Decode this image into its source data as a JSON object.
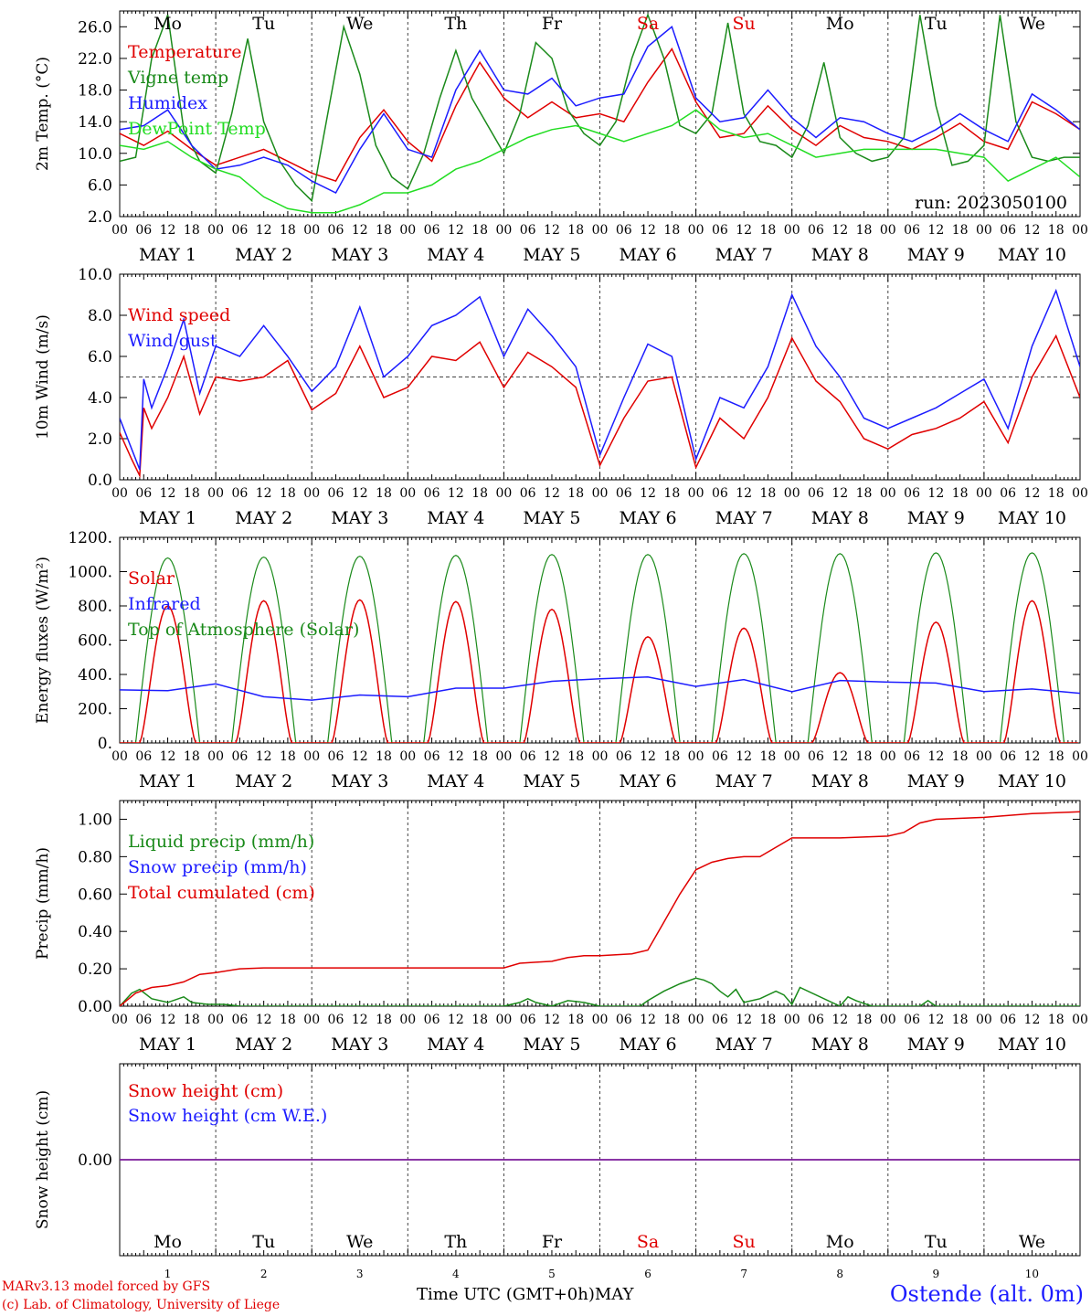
{
  "days": {
    "short": [
      "Mo",
      "Tu",
      "We",
      "Th",
      "Fr",
      "Sa",
      "Su",
      "Mo",
      "Tu",
      "We"
    ],
    "colors": [
      "#000000",
      "#000000",
      "#000000",
      "#000000",
      "#000000",
      "#e00000",
      "#e00000",
      "#000000",
      "#000000",
      "#000000"
    ],
    "numbers": [
      "1",
      "2",
      "3",
      "4",
      "5",
      "6",
      "7",
      "8",
      "9",
      "10"
    ],
    "date_labels": [
      "MAY  1",
      "MAY  2",
      "MAY  3",
      "MAY  4",
      "MAY  5",
      "MAY  6",
      "MAY  7",
      "MAY  8",
      "MAY  9",
      "MAY 10"
    ],
    "hour_ticks": [
      "00",
      "06",
      "12",
      "18"
    ],
    "final_tick": "00"
  },
  "colors": {
    "red": "#e00000",
    "blue": "#1c1cff",
    "green": "#1a8a1a",
    "lightgreen": "#22dd22",
    "purple": "#7a1a9a",
    "grid": "#444444"
  },
  "run_label": "run: 2023050100",
  "footer": {
    "credit_line1": "MARv3.13 model forced by GFS",
    "credit_line2": "(c) Lab. of Climatology, University of Liege",
    "xlabel": "Time UTC (GMT+0h)",
    "month": "MAY",
    "station": "Ostende (alt. 0m)"
  },
  "chart_data": [
    {
      "type": "line",
      "ylabel": "2m Temp. (°C)",
      "ylim": [
        2,
        28
      ],
      "yticks": [
        "2.0",
        "6.0",
        "10.0",
        "14.0",
        "18.0",
        "22.0",
        "26.0"
      ],
      "ytick_values": [
        2,
        6,
        10,
        14,
        18,
        22,
        26
      ],
      "ref_line": null,
      "x_unit": "hours since 2023-05-01 00 UTC",
      "series": [
        {
          "name": "Temperature",
          "color_key": "red",
          "x": [
            0,
            6,
            12,
            18,
            24,
            30,
            36,
            42,
            48,
            54,
            60,
            66,
            72,
            78,
            84,
            90,
            96,
            102,
            108,
            114,
            120,
            126,
            132,
            138,
            144,
            150,
            156,
            162,
            168,
            174,
            180,
            186,
            192,
            198,
            204,
            210,
            216,
            222,
            228,
            234,
            240
          ],
          "y": [
            12.5,
            11.0,
            12.8,
            10.5,
            8.5,
            9.5,
            10.5,
            9.0,
            7.5,
            6.5,
            12.0,
            15.5,
            11.5,
            9.0,
            16.0,
            21.5,
            17.0,
            14.5,
            16.5,
            14.5,
            15.0,
            14.0,
            19.0,
            23.2,
            16.5,
            12.0,
            12.5,
            16.0,
            13.0,
            11.0,
            13.5,
            12.0,
            11.5,
            10.5,
            12.0,
            13.8,
            11.5,
            10.5,
            16.5,
            15.0,
            13.0
          ]
        },
        {
          "name": "Vigne temp",
          "color_key": "green",
          "x": [
            0,
            4,
            8,
            12,
            16,
            20,
            24,
            28,
            32,
            36,
            40,
            44,
            48,
            52,
            56,
            60,
            64,
            68,
            72,
            76,
            80,
            84,
            88,
            92,
            96,
            100,
            104,
            108,
            112,
            116,
            120,
            124,
            128,
            132,
            136,
            140,
            144,
            148,
            152,
            156,
            160,
            164,
            168,
            172,
            176,
            180,
            184,
            188,
            192,
            196,
            200,
            204,
            208,
            212,
            216,
            220,
            224,
            228,
            232,
            236,
            240
          ],
          "y": [
            9.0,
            9.5,
            22.0,
            27.5,
            13.0,
            9.0,
            7.5,
            15.0,
            24.5,
            14.0,
            9.0,
            6.0,
            4.0,
            15.0,
            26.0,
            20.0,
            11.0,
            7.0,
            5.5,
            10.0,
            17.0,
            23.0,
            17.0,
            13.5,
            10.0,
            15.0,
            24.0,
            22.0,
            15.5,
            12.5,
            11.0,
            14.0,
            22.0,
            27.5,
            22.0,
            13.5,
            12.5,
            15.0,
            26.5,
            15.0,
            11.5,
            11.0,
            9.5,
            13.5,
            21.5,
            12.0,
            10.0,
            9.0,
            9.5,
            12.0,
            27.5,
            16.0,
            8.5,
            9.0,
            11.0,
            27.5,
            14.0,
            9.5,
            9.0,
            9.5,
            9.5
          ]
        },
        {
          "name": "Humidex",
          "color_key": "blue",
          "x": [
            0,
            6,
            12,
            18,
            24,
            30,
            36,
            42,
            48,
            54,
            60,
            66,
            72,
            78,
            84,
            90,
            96,
            102,
            108,
            114,
            120,
            126,
            132,
            138,
            144,
            150,
            156,
            162,
            168,
            174,
            180,
            186,
            192,
            198,
            204,
            210,
            216,
            222,
            228,
            234,
            240
          ],
          "y": [
            13.0,
            13.5,
            15.5,
            11.0,
            8.0,
            8.5,
            9.5,
            8.5,
            6.5,
            5.0,
            10.5,
            15.0,
            10.5,
            9.5,
            18.0,
            23.0,
            18.0,
            17.5,
            19.5,
            16.0,
            17.0,
            17.5,
            23.5,
            26.0,
            17.0,
            14.0,
            14.5,
            18.0,
            14.5,
            12.0,
            14.5,
            14.0,
            12.5,
            11.5,
            13.0,
            15.0,
            13.0,
            11.5,
            17.5,
            15.5,
            13.0
          ]
        },
        {
          "name": "DewPoint Temp",
          "color_key": "lightgreen",
          "x": [
            0,
            6,
            12,
            18,
            24,
            30,
            36,
            42,
            48,
            54,
            60,
            66,
            72,
            78,
            84,
            90,
            96,
            102,
            108,
            114,
            120,
            126,
            132,
            138,
            144,
            150,
            156,
            162,
            168,
            174,
            180,
            186,
            192,
            198,
            204,
            210,
            216,
            222,
            228,
            234,
            240
          ],
          "y": [
            11.0,
            10.5,
            11.5,
            9.5,
            8.0,
            7.0,
            4.5,
            3.0,
            2.5,
            2.5,
            3.5,
            5.0,
            5.0,
            6.0,
            8.0,
            9.0,
            10.5,
            12.0,
            13.0,
            13.5,
            12.5,
            11.5,
            12.5,
            13.5,
            15.5,
            13.0,
            12.0,
            12.5,
            11.0,
            9.5,
            10.0,
            10.5,
            10.5,
            10.5,
            10.5,
            10.0,
            9.5,
            6.5,
            8.0,
            9.5,
            7.0
          ]
        }
      ]
    },
    {
      "type": "line",
      "ylabel": "10m Wind (m/s)",
      "ylim": [
        0,
        10
      ],
      "yticks": [
        "0.0",
        "2.0",
        "4.0",
        "6.0",
        "8.0",
        "10.0"
      ],
      "ytick_values": [
        0,
        2,
        4,
        6,
        8,
        10
      ],
      "ref_line": 5,
      "x_unit": "hours since 2023-05-01 00 UTC",
      "series": [
        {
          "name": "Wind speed",
          "color_key": "red",
          "x": [
            0,
            3,
            5,
            6,
            8,
            12,
            16,
            20,
            24,
            30,
            36,
            42,
            48,
            54,
            60,
            66,
            72,
            78,
            84,
            90,
            96,
            102,
            108,
            114,
            120,
            126,
            132,
            138,
            144,
            150,
            156,
            162,
            168,
            174,
            180,
            186,
            192,
            198,
            204,
            210,
            216,
            222,
            228,
            234,
            240
          ],
          "y": [
            2.3,
            1.0,
            0.2,
            3.5,
            2.5,
            4.0,
            6.0,
            3.2,
            5.0,
            4.8,
            5.0,
            5.8,
            3.4,
            4.2,
            6.5,
            4.0,
            4.5,
            6.0,
            5.8,
            6.7,
            4.5,
            6.2,
            5.5,
            4.5,
            0.7,
            3.0,
            4.8,
            5.0,
            0.6,
            3.0,
            2.0,
            4.0,
            6.9,
            4.8,
            3.8,
            2.0,
            1.5,
            2.2,
            2.5,
            3.0,
            3.8,
            1.8,
            5.0,
            7.0,
            4.0
          ]
        },
        {
          "name": "Wind gust",
          "color_key": "blue",
          "x": [
            0,
            3,
            5,
            6,
            8,
            12,
            16,
            20,
            24,
            30,
            36,
            42,
            48,
            54,
            60,
            66,
            72,
            78,
            84,
            90,
            96,
            102,
            108,
            114,
            120,
            126,
            132,
            138,
            144,
            150,
            156,
            162,
            168,
            174,
            180,
            186,
            192,
            198,
            204,
            210,
            216,
            222,
            228,
            234,
            240
          ],
          "y": [
            3.0,
            1.5,
            0.5,
            4.9,
            3.5,
            5.5,
            7.8,
            4.2,
            6.5,
            6.0,
            7.5,
            6.0,
            4.3,
            5.5,
            8.4,
            5.0,
            6.0,
            7.5,
            8.0,
            8.9,
            6.0,
            8.3,
            7.0,
            5.5,
            1.2,
            4.0,
            6.6,
            6.0,
            1.0,
            4.0,
            3.5,
            5.5,
            9.0,
            6.5,
            5.0,
            3.0,
            2.5,
            3.0,
            3.5,
            4.2,
            4.9,
            2.5,
            6.5,
            9.2,
            5.5
          ]
        }
      ]
    },
    {
      "type": "line",
      "ylabel": "Energy fluxes (W/m²)",
      "ylim": [
        0,
        1200
      ],
      "yticks": [
        "0.",
        "200.",
        "400.",
        "600.",
        "800.",
        "1000.",
        "1200."
      ],
      "ytick_values": [
        0,
        200,
        400,
        600,
        800,
        1000,
        1200
      ],
      "ref_line": null,
      "x_unit": "hours since 2023-05-01 00 UTC",
      "toa_peaks": [
        1080,
        1085,
        1090,
        1095,
        1100,
        1100,
        1105,
        1105,
        1110,
        1110
      ],
      "solar_peaks": [
        800,
        830,
        835,
        825,
        780,
        620,
        670,
        410,
        705,
        830
      ],
      "series": [
        {
          "name": "Solar",
          "color_key": "red",
          "x": [],
          "y": []
        },
        {
          "name": "Infrared",
          "color_key": "blue",
          "x": [
            0,
            12,
            24,
            36,
            48,
            60,
            72,
            84,
            96,
            108,
            120,
            132,
            144,
            156,
            168,
            180,
            192,
            204,
            216,
            228,
            240
          ],
          "y": [
            310,
            305,
            345,
            270,
            250,
            280,
            270,
            320,
            320,
            360,
            375,
            385,
            330,
            370,
            300,
            365,
            355,
            350,
            300,
            315,
            290
          ]
        },
        {
          "name": "Top of Atmosphere (Solar)",
          "color_key": "green",
          "x": [],
          "y": []
        }
      ]
    },
    {
      "type": "line",
      "ylabel": "Precip (mm/h)",
      "ylim": [
        0,
        1.1
      ],
      "yticks": [
        "0.00",
        "0.20",
        "0.40",
        "0.60",
        "0.80",
        "1.00"
      ],
      "ytick_values": [
        0,
        0.2,
        0.4,
        0.6,
        0.8,
        1.0
      ],
      "ref_line": null,
      "x_unit": "hours since 2023-05-01 00 UTC",
      "series": [
        {
          "name": "Liquid precip (mm/h)",
          "color_key": "green",
          "x": [
            0,
            3,
            5,
            8,
            12,
            16,
            18,
            22,
            26,
            30,
            36,
            96,
            100,
            102,
            104,
            108,
            112,
            116,
            120,
            130,
            132,
            136,
            140,
            144,
            146,
            148,
            150,
            152,
            154,
            156,
            160,
            164,
            166,
            168,
            170,
            180,
            182,
            184,
            188,
            200,
            202,
            204,
            240
          ],
          "y": [
            0,
            0.07,
            0.09,
            0.04,
            0.02,
            0.05,
            0.02,
            0.01,
            0.01,
            0.0,
            0,
            0,
            0.02,
            0.04,
            0.02,
            0,
            0.03,
            0.02,
            0,
            0,
            0.03,
            0.08,
            0.12,
            0.15,
            0.14,
            0.12,
            0.08,
            0.05,
            0.09,
            0.02,
            0.04,
            0.08,
            0.06,
            0.01,
            0.1,
            0,
            0.05,
            0.03,
            0.0,
            0,
            0.03,
            0.0,
            0
          ]
        },
        {
          "name": "Snow precip (mm/h)",
          "color_key": "blue",
          "x": [],
          "y": []
        },
        {
          "name": "Total cumulated (cm)",
          "color_key": "red",
          "x": [
            0,
            4,
            8,
            12,
            16,
            20,
            24,
            30,
            36,
            48,
            72,
            96,
            100,
            104,
            108,
            112,
            116,
            120,
            128,
            132,
            136,
            140,
            144,
            148,
            152,
            156,
            160,
            168,
            180,
            192,
            196,
            200,
            204,
            216,
            228,
            240
          ],
          "y": [
            0,
            0.07,
            0.1,
            0.11,
            0.13,
            0.17,
            0.18,
            0.2,
            0.205,
            0.205,
            0.205,
            0.205,
            0.23,
            0.235,
            0.24,
            0.26,
            0.27,
            0.27,
            0.28,
            0.3,
            0.45,
            0.6,
            0.73,
            0.77,
            0.79,
            0.8,
            0.8,
            0.9,
            0.9,
            0.91,
            0.93,
            0.98,
            1.0,
            1.01,
            1.03,
            1.04
          ]
        }
      ]
    },
    {
      "type": "line",
      "ylabel": "Snow height (cm)",
      "ylim": [
        -1,
        1
      ],
      "yticks": [
        "0.00"
      ],
      "ytick_values": [
        0
      ],
      "ref_line": null,
      "x_unit": "hours since 2023-05-01 00 UTC",
      "series": [
        {
          "name": "Snow height (cm)",
          "color_key": "red",
          "x": [
            0,
            240
          ],
          "y": [
            0,
            0
          ]
        },
        {
          "name": "Snow height (cm W.E.)",
          "color_key": "blue",
          "x": [
            0,
            240
          ],
          "y": [
            0,
            0
          ]
        }
      ]
    }
  ]
}
